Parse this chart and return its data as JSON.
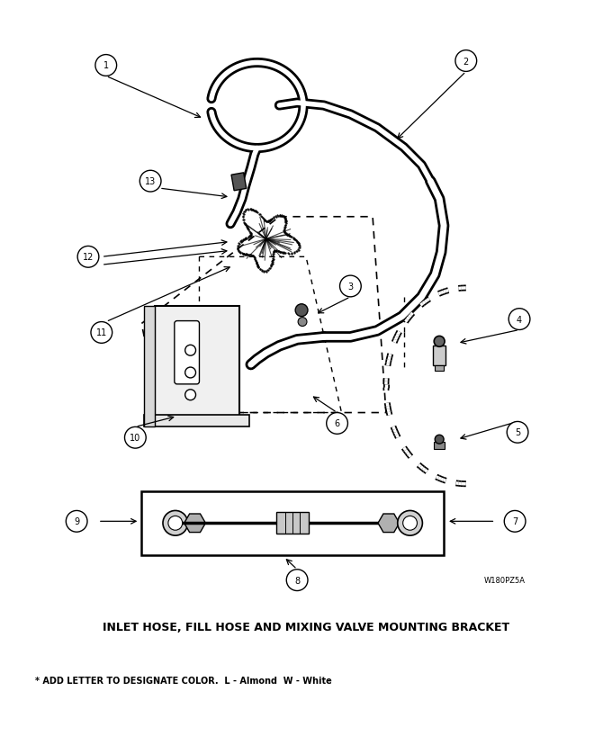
{
  "title_bottom": "INLET HOSE, FILL HOSE AND MIXING VALVE MOUNTING BRACKET",
  "footnote": "* ADD LETTER TO DESIGNATE COLOR.  L - Almond  W - White",
  "part_id": "W180PZ5A",
  "fig_size": [
    6.8,
    8.29
  ],
  "dpi": 100,
  "bg_color": "#ffffff",
  "title_fontsize": 9,
  "footnote_fontsize": 7,
  "partid_fontsize": 6
}
